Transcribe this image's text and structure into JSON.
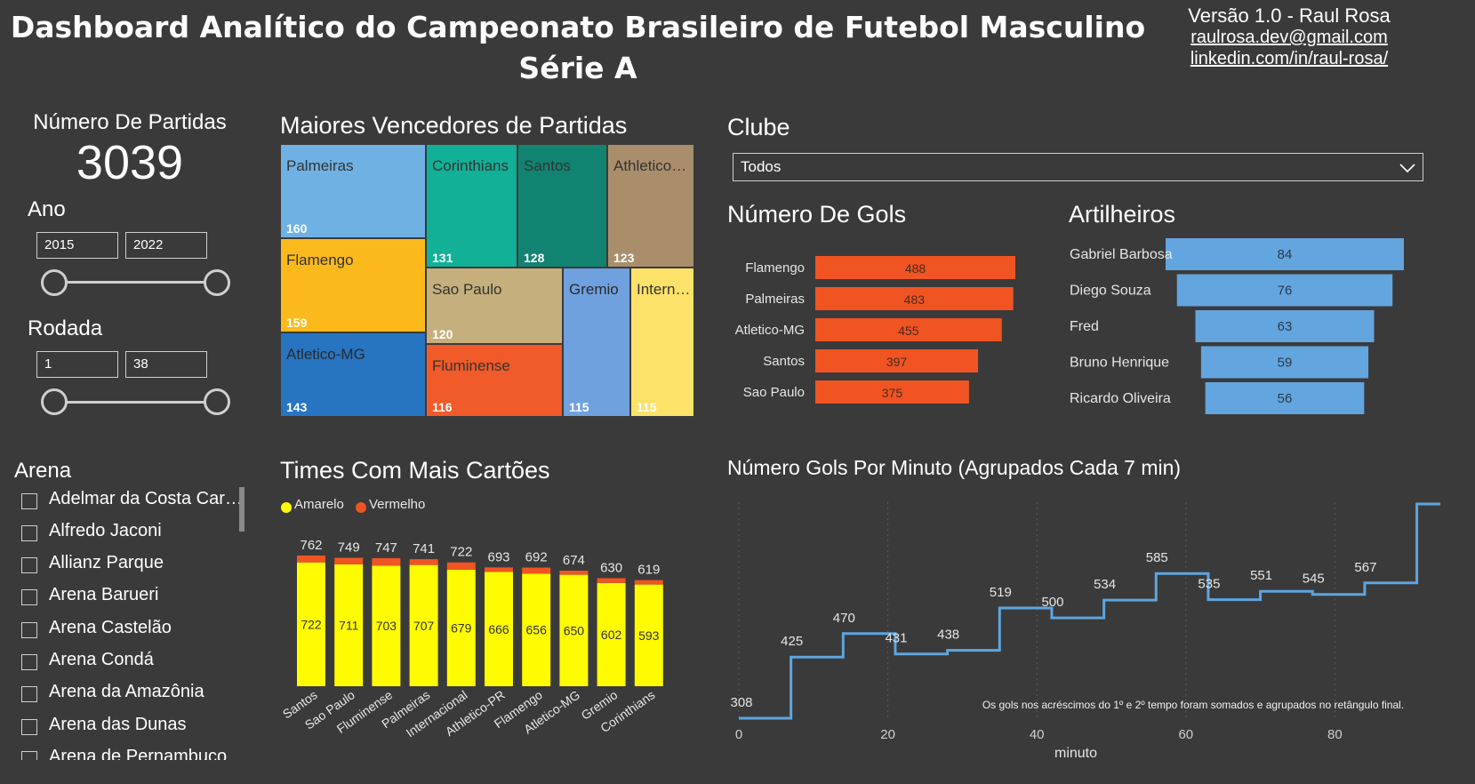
{
  "header": {
    "title_line1": "Dashboard Analítico do Campeonato Brasileiro de Futebol Masculino",
    "title_line2": "Série A",
    "version": "Versão 1.0 - Raul Rosa",
    "email": "raulrosa.dev@gmail.com",
    "linkedin": "linkedin.com/in/raul-rosa/"
  },
  "kpi": {
    "label": "Número De Partidas",
    "value": "3039"
  },
  "ano": {
    "label": "Ano",
    "from": "2015",
    "to": "2022"
  },
  "rodada": {
    "label": "Rodada",
    "from": "1",
    "to": "38"
  },
  "arena": {
    "label": "Arena",
    "items": [
      "Adelmar da Costa Car…",
      "Alfredo Jaconi",
      "Allianz Parque",
      "Arena Barueri",
      "Arena Castelão",
      "Arena Condá",
      "Arena da Amazônia",
      "Arena das Dunas",
      "Arena de Pernambuco"
    ]
  },
  "treemap": {
    "title": "Maiores Vencedores de Partidas",
    "items": [
      {
        "name": "Palmeiras",
        "value": 160,
        "color": "#6fb1e3"
      },
      {
        "name": "Flamengo",
        "value": 159,
        "color": "#fbb91b"
      },
      {
        "name": "Atletico-MG",
        "value": 143,
        "color": "#2774c1"
      },
      {
        "name": "Corinthians",
        "value": 131,
        "color": "#12b096"
      },
      {
        "name": "Santos",
        "value": 128,
        "color": "#118471"
      },
      {
        "name": "Athletico…",
        "value": 123,
        "color": "#aa8e6c"
      },
      {
        "name": "Sao Paulo",
        "value": 120,
        "color": "#c5b07d"
      },
      {
        "name": "Fluminense",
        "value": 116,
        "color": "#f15a29"
      },
      {
        "name": "Gremio",
        "value": 115,
        "color": "#6fa1de"
      },
      {
        "name": "Intern…",
        "value": 115,
        "color": "#fde269"
      }
    ]
  },
  "clube": {
    "label": "Clube",
    "selected": "Todos"
  },
  "gols": {
    "title": "Número De Gols",
    "chart_data": {
      "type": "bar",
      "orientation": "horizontal",
      "categories": [
        "Flamengo",
        "Palmeiras",
        "Atletico-MG",
        "Santos",
        "Sao Paulo"
      ],
      "values": [
        488,
        483,
        455,
        397,
        375
      ],
      "color": "#f05423"
    }
  },
  "artilheiros": {
    "title": "Artilheiros",
    "chart_data": {
      "type": "bar",
      "orientation": "funnel",
      "categories": [
        "Gabriel Barbosa",
        "Diego Souza",
        "Fred",
        "Bruno Henrique",
        "Ricardo Oliveira"
      ],
      "values": [
        84,
        76,
        63,
        59,
        56
      ],
      "color": "#63a5de"
    }
  },
  "cartoes": {
    "title": "Times Com Mais Cartões",
    "legend": [
      {
        "name": "Amarelo",
        "color": "#fffb00"
      },
      {
        "name": "Vermelho",
        "color": "#f05423"
      }
    ],
    "chart_data": {
      "type": "bar",
      "stacked": true,
      "categories": [
        "Santos",
        "Sao Paulo",
        "Fluminense",
        "Palmeiras",
        "Internacional",
        "Athletico-PR",
        "Flamengo",
        "Atletico-MG",
        "Gremio",
        "Corinthians"
      ],
      "totals": [
        762,
        749,
        747,
        741,
        722,
        693,
        692,
        674,
        630,
        619
      ],
      "series": [
        {
          "name": "Amarelo",
          "values": [
            722,
            711,
            703,
            707,
            679,
            666,
            656,
            650,
            602,
            593
          ]
        },
        {
          "name": "Vermelho",
          "values": [
            40,
            38,
            44,
            34,
            43,
            27,
            36,
            24,
            28,
            26
          ]
        }
      ]
    }
  },
  "gols_minuto": {
    "title": "Número Gols Por Minuto (Agrupados Cada 7 min)",
    "note": "Os gols nos acréscimos do 1º e 2º tempo foram somados e agrupados no retângulo final.",
    "chart_data": {
      "type": "line",
      "step": true,
      "x": [
        0,
        7,
        14,
        21,
        28,
        35,
        42,
        49,
        56,
        63,
        70,
        77,
        84,
        91
      ],
      "y": [
        308,
        425,
        470,
        431,
        438,
        519,
        500,
        534,
        585,
        535,
        551,
        545,
        567,
        718
      ],
      "xlabel": "minuto",
      "xticks": [
        0,
        20,
        40,
        60,
        80
      ],
      "color": "#5ea5e0"
    }
  }
}
